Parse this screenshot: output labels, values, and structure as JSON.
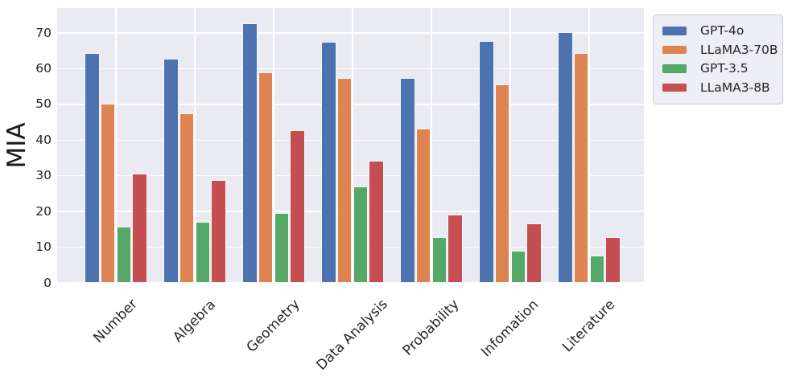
{
  "chart_data": {
    "type": "bar",
    "title": "",
    "xlabel": "",
    "ylabel": "MIA",
    "categories": [
      "Number",
      "Algebra",
      "Geometry",
      "Data Analysis",
      "Probability",
      "Infomation",
      "Literature"
    ],
    "series": [
      {
        "name": "GPT-4o",
        "color": "#4C72B0",
        "values": [
          64.5,
          62.8,
          72.7,
          67.6,
          57.5,
          67.7,
          70.2
        ]
      },
      {
        "name": "LLaMA3-70B",
        "color": "#DD8452",
        "values": [
          50.1,
          47.4,
          58.9,
          57.5,
          43.2,
          55.5,
          64.3
        ]
      },
      {
        "name": "GPT-3.5",
        "color": "#55A868",
        "values": [
          15.7,
          17.1,
          19.7,
          27.0,
          12.8,
          9.1,
          7.6
        ]
      },
      {
        "name": "LLaMA3-8B",
        "color": "#C44E52",
        "values": [
          30.6,
          28.9,
          42.8,
          34.3,
          19.1,
          16.6,
          12.9
        ]
      }
    ],
    "y_ticks": [
      0,
      10,
      20,
      30,
      40,
      50,
      60,
      70
    ],
    "ylim": [
      0,
      77
    ],
    "x_tick_rotation_deg": 45,
    "grid": true,
    "legend_position": "upper right outside",
    "plot_bg_color": "#EAEAF2",
    "grid_color": "#FFFFFF",
    "legend_bg_color": "#EEEEF5",
    "legend_border_color": "#CCCCCC",
    "text_color": "#262626"
  }
}
